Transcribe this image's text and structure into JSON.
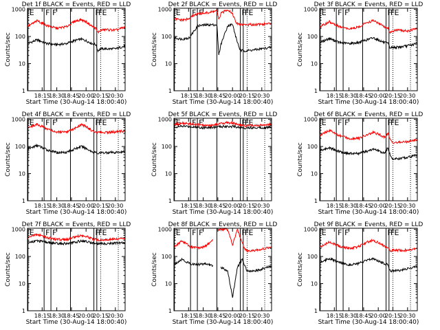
{
  "figure": {
    "xlabel": "Start Time (30-Aug-14 18:00:40)",
    "ylabel": "Counts/sec",
    "xticks": [
      {
        "label": "18:15",
        "t": 15
      },
      {
        "label": "18:30",
        "t": 30
      },
      {
        "label": "18:45",
        "t": 45
      },
      {
        "label": "20:00",
        "t": 60
      },
      {
        "label": "20:15",
        "t": 75
      },
      {
        "label": "20:30",
        "t": 90
      }
    ],
    "yticks": [
      {
        "label": "1",
        "v": 1
      },
      {
        "label": "10",
        "v": 10
      },
      {
        "label": "100",
        "v": 100
      },
      {
        "label": "1000",
        "v": 1000
      }
    ],
    "events": [
      {
        "t": 0.5,
        "label": "E",
        "style": "solid"
      },
      {
        "t": 17,
        "label": "F",
        "style": "solid"
      },
      {
        "t": 24,
        "label": "F",
        "style": "solid"
      },
      {
        "t": 44,
        "label": "",
        "style": "solid"
      },
      {
        "t": 68,
        "label": "F",
        "style": "solid"
      },
      {
        "t": 71,
        "label": "F",
        "style": "solid"
      },
      {
        "t": 75,
        "label": "E",
        "style": "dotted"
      },
      {
        "t": 93,
        "label": "",
        "style": "dotted"
      }
    ],
    "colors": {
      "black_series": "#000000",
      "red_series": "#ff0000"
    }
  },
  "chart_data": [
    {
      "type": "line",
      "title": "Det 1f BLACK = Events, RED = LLD",
      "x": [
        0,
        10,
        20,
        30,
        40,
        48,
        55,
        60,
        66,
        70,
        72,
        75,
        80,
        90,
        100
      ],
      "ylim": [
        1,
        1100
      ],
      "log_y": true,
      "series": [
        {
          "name": "Events",
          "color": "black",
          "values": [
            55,
            75,
            55,
            50,
            55,
            70,
            80,
            70,
            55,
            50,
            30,
            35,
            35,
            35,
            45
          ]
        },
        {
          "name": "LLD",
          "color": "red",
          "values": [
            230,
            380,
            250,
            200,
            230,
            360,
            420,
            350,
            240,
            200,
            140,
            170,
            180,
            170,
            220
          ]
        }
      ]
    },
    {
      "type": "line",
      "title": "Det 2f BLACK = Events, RED = LLD",
      "x": [
        0,
        8,
        16,
        20,
        25,
        35,
        44,
        46,
        48,
        55,
        60,
        64,
        68,
        72,
        75,
        85,
        100
      ],
      "ylim": [
        1,
        1100
      ],
      "log_y": true,
      "series": [
        {
          "name": "Events",
          "color": "black",
          "values": [
            90,
            80,
            90,
            150,
            250,
            270,
            270,
            20,
            50,
            250,
            280,
            80,
            30,
            30,
            30,
            33,
            40
          ]
        },
        {
          "name": "LLD",
          "color": "red",
          "values": [
            450,
            400,
            450,
            600,
            700,
            750,
            900,
            400,
            700,
            1000,
            700,
            300,
            280,
            280,
            270,
            280,
            300
          ]
        }
      ]
    },
    {
      "type": "line",
      "title": "Det 3f BLACK = Events, RED = LLD",
      "x": [
        0,
        10,
        20,
        30,
        40,
        48,
        55,
        60,
        66,
        70,
        72,
        75,
        80,
        90,
        100
      ],
      "ylim": [
        1,
        1100
      ],
      "log_y": true,
      "series": [
        {
          "name": "Events",
          "color": "black",
          "values": [
            60,
            85,
            60,
            55,
            60,
            75,
            90,
            75,
            60,
            55,
            38,
            40,
            40,
            45,
            55
          ]
        },
        {
          "name": "LLD",
          "color": "red",
          "values": [
            220,
            350,
            230,
            190,
            220,
            330,
            380,
            320,
            230,
            200,
            140,
            160,
            170,
            160,
            200
          ]
        }
      ]
    },
    {
      "type": "line",
      "title": "Det 4f BLACK = Events, RED = LLD",
      "x": [
        0,
        10,
        20,
        30,
        40,
        48,
        55,
        60,
        66,
        70,
        72,
        75,
        80,
        90,
        100
      ],
      "ylim": [
        1,
        1100
      ],
      "log_y": true,
      "series": [
        {
          "name": "Events",
          "color": "black",
          "values": [
            80,
            110,
            75,
            60,
            62,
            80,
            100,
            85,
            65,
            60,
            55,
            58,
            60,
            60,
            65
          ]
        },
        {
          "name": "LLD",
          "color": "red",
          "values": [
            500,
            650,
            450,
            340,
            330,
            450,
            650,
            550,
            380,
            340,
            320,
            330,
            330,
            340,
            380
          ]
        }
      ]
    },
    {
      "type": "line",
      "title": "Det 5f BLACK = Events, RED = LLD",
      "x": [
        0,
        10,
        20,
        30,
        40,
        48,
        55,
        60,
        66,
        70,
        72,
        75,
        80,
        90,
        100
      ],
      "ylim": [
        1,
        1100
      ],
      "log_y": true,
      "series": [
        {
          "name": "Events",
          "color": "black",
          "values": [
            520,
            560,
            530,
            500,
            510,
            540,
            560,
            545,
            520,
            500,
            490,
            495,
            495,
            500,
            510
          ]
        },
        {
          "name": "LLD",
          "color": "red",
          "values": [
            650,
            720,
            660,
            600,
            620,
            700,
            760,
            720,
            650,
            600,
            580,
            590,
            600,
            610,
            640
          ]
        }
      ]
    },
    {
      "type": "line",
      "title": "Det 6f BLACK = Events, RED = LLD",
      "x": [
        0,
        10,
        20,
        30,
        40,
        48,
        55,
        60,
        66,
        70,
        72,
        75,
        80,
        90,
        100
      ],
      "ylim": [
        1,
        1100
      ],
      "log_y": true,
      "series": [
        {
          "name": "Events",
          "color": "black",
          "values": [
            70,
            90,
            65,
            55,
            55,
            65,
            80,
            70,
            55,
            90,
            50,
            35,
            35,
            40,
            50
          ]
        },
        {
          "name": "LLD",
          "color": "red",
          "values": [
            250,
            400,
            250,
            200,
            200,
            260,
            330,
            290,
            220,
            300,
            180,
            140,
            140,
            150,
            180
          ]
        }
      ]
    },
    {
      "type": "line",
      "title": "Det 7f BLACK = Events, RED = LLD",
      "x": [
        0,
        10,
        20,
        30,
        40,
        48,
        55,
        60,
        66,
        70,
        72,
        75,
        80,
        90,
        100
      ],
      "ylim": [
        1,
        1100
      ],
      "log_y": true,
      "series": [
        {
          "name": "Events",
          "color": "black",
          "values": [
            330,
            380,
            330,
            300,
            300,
            330,
            380,
            360,
            320,
            300,
            290,
            295,
            300,
            310,
            320
          ]
        },
        {
          "name": "LLD",
          "color": "red",
          "values": [
            500,
            650,
            500,
            420,
            420,
            520,
            600,
            560,
            460,
            420,
            400,
            410,
            420,
            430,
            470
          ]
        }
      ]
    },
    {
      "type": "line",
      "title": "Det 8f BLACK = Events, RED = LLD",
      "x": [
        0,
        8,
        16,
        24,
        32,
        40,
        42,
        45,
        48,
        55,
        60,
        65,
        70,
        72,
        75,
        85,
        100
      ],
      "ylim": [
        1,
        1100
      ],
      "log_y": true,
      "series": [
        {
          "name": "Events",
          "color": "black",
          "values": [
            50,
            80,
            55,
            50,
            55,
            45,
            null,
            null,
            40,
            30,
            3,
            40,
            80,
            50,
            30,
            30,
            45
          ]
        },
        {
          "name": "LLD",
          "color": "red",
          "values": [
            230,
            380,
            240,
            200,
            240,
            400,
            null,
            1000,
            1000,
            1000,
            260,
            1000,
            300,
            200,
            160,
            170,
            220
          ]
        }
      ]
    },
    {
      "type": "line",
      "title": "Det 9f BLACK = Events, RED = LLD",
      "x": [
        0,
        10,
        20,
        30,
        40,
        48,
        55,
        60,
        66,
        70,
        72,
        75,
        80,
        90,
        100
      ],
      "ylim": [
        1,
        1100
      ],
      "log_y": true,
      "series": [
        {
          "name": "Events",
          "color": "black",
          "values": [
            60,
            85,
            60,
            50,
            55,
            70,
            85,
            70,
            55,
            50,
            30,
            30,
            30,
            35,
            45
          ]
        },
        {
          "name": "LLD",
          "color": "red",
          "values": [
            220,
            350,
            240,
            200,
            230,
            330,
            400,
            320,
            240,
            220,
            160,
            170,
            170,
            170,
            210
          ]
        }
      ]
    }
  ]
}
